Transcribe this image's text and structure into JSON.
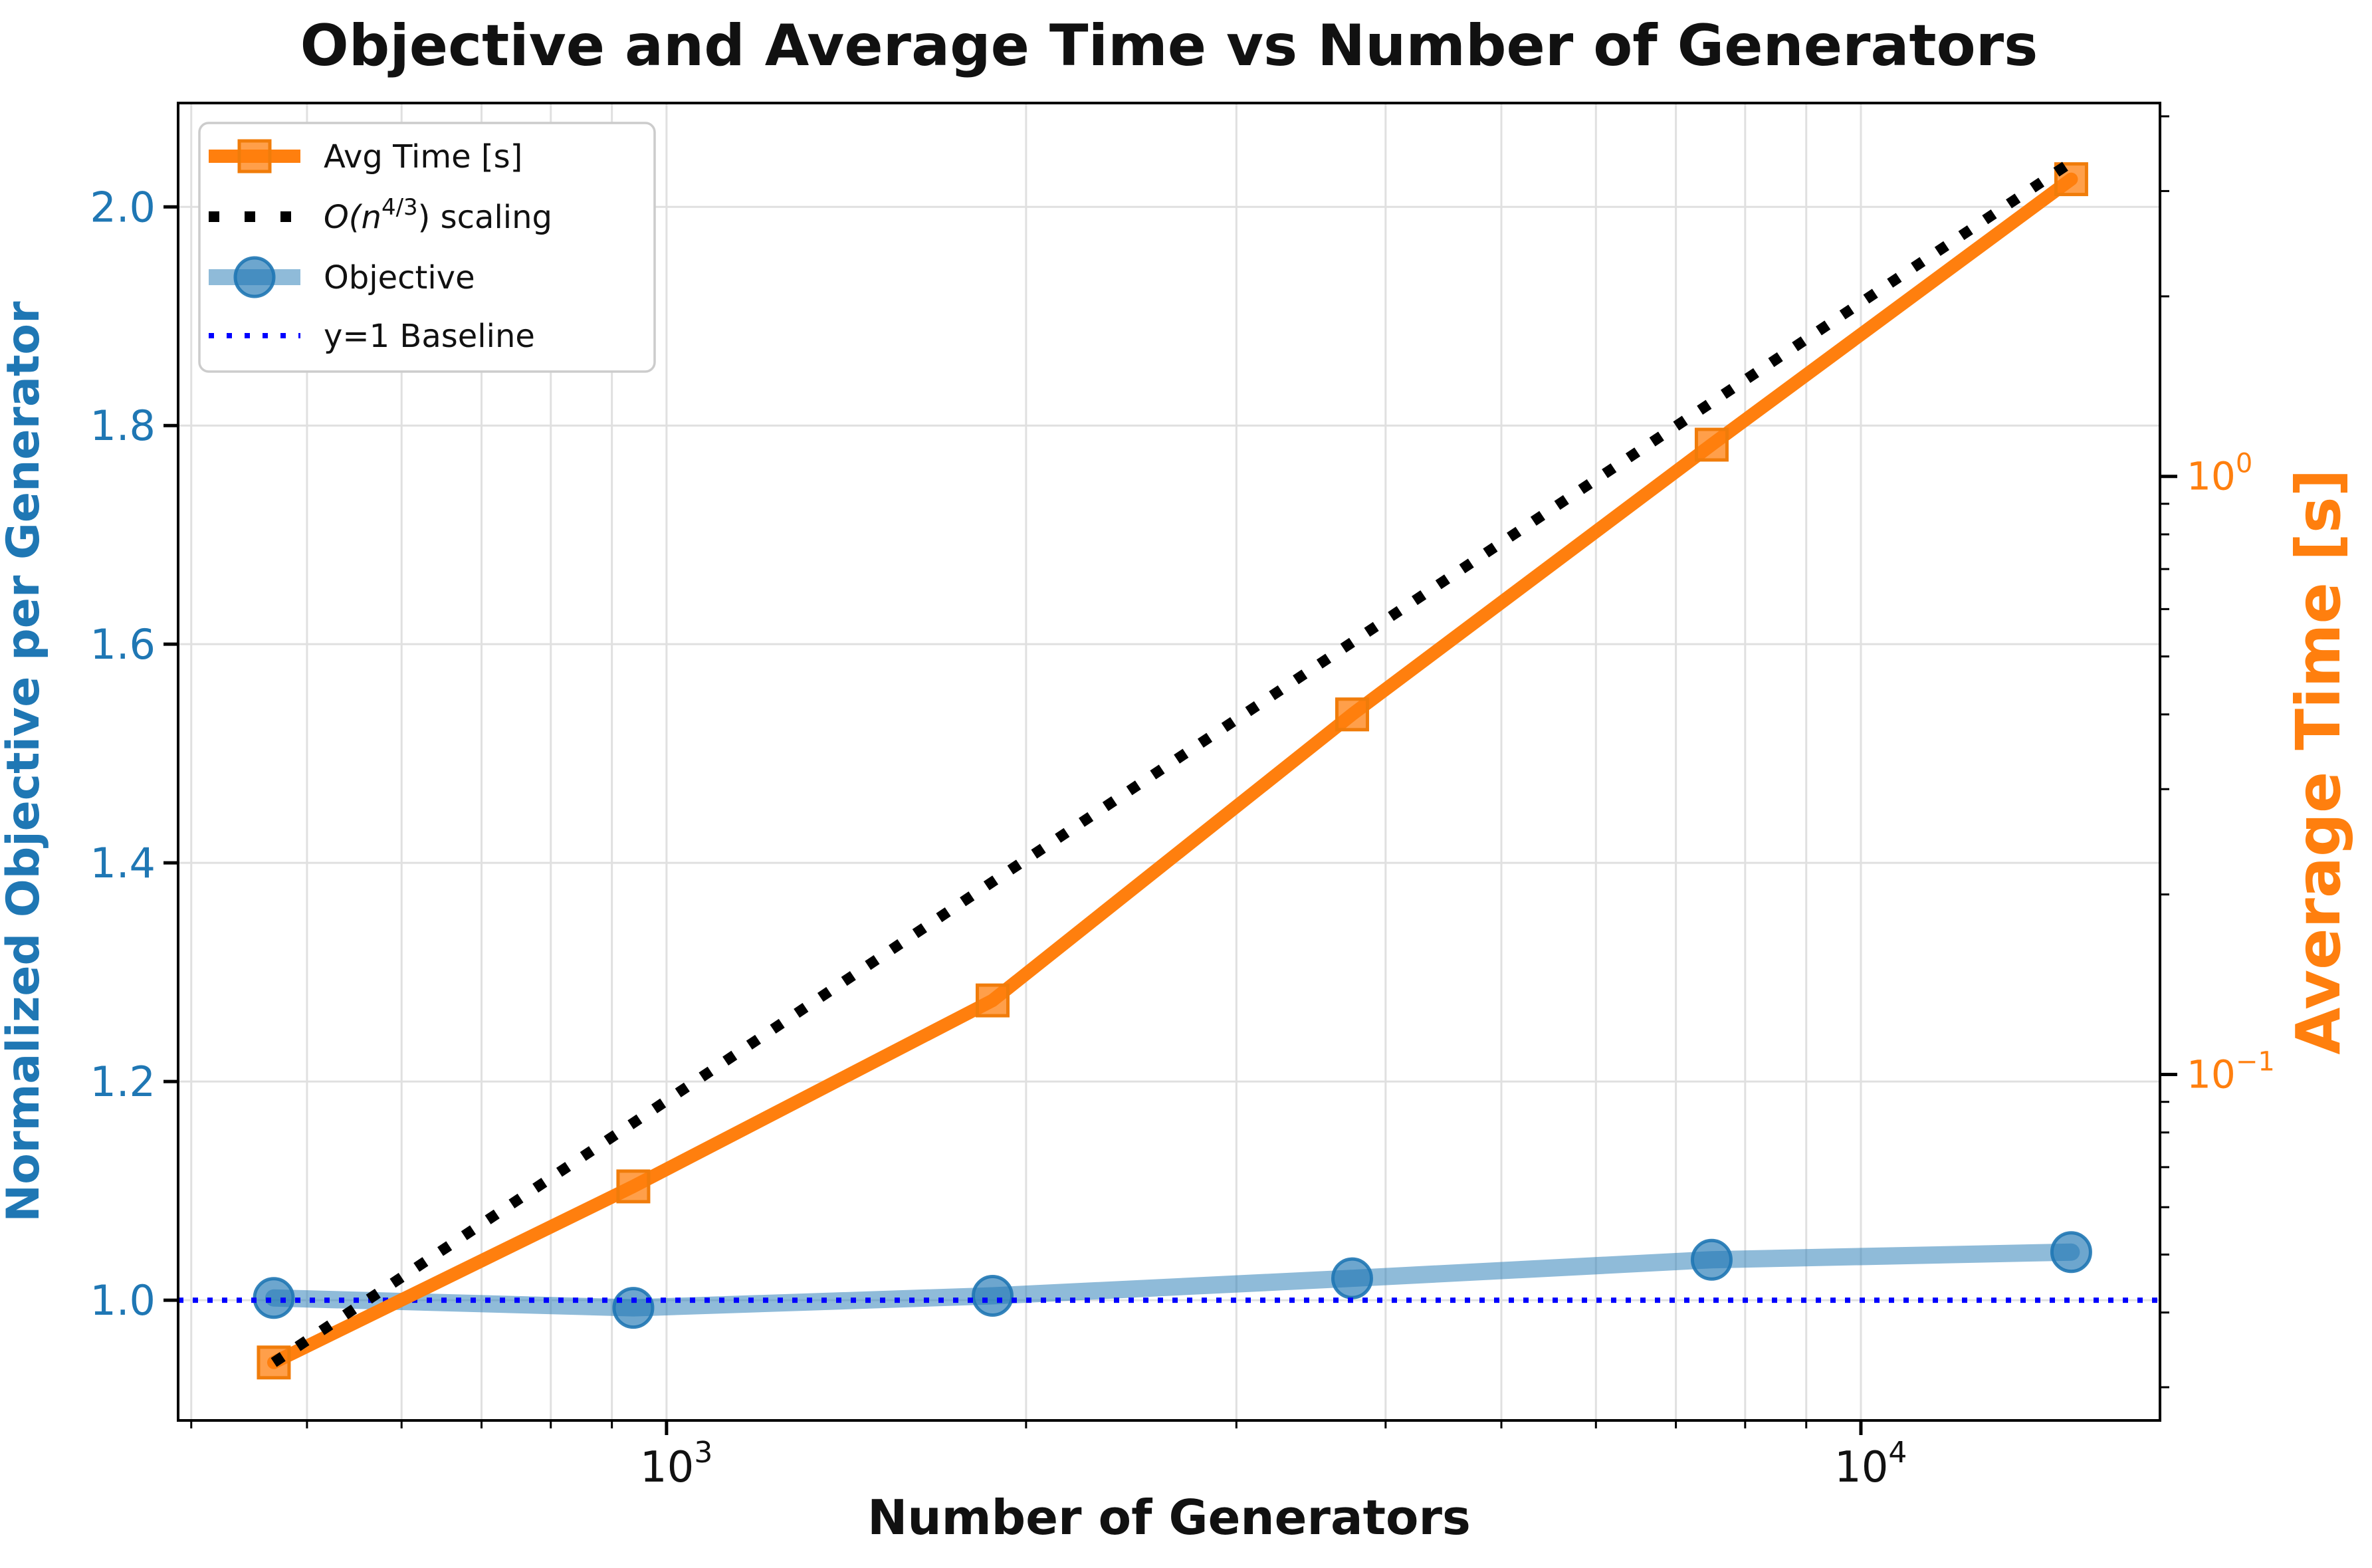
{
  "chart_data": {
    "type": "line",
    "title": "Objective and Average Time vs Number of Generators",
    "xlabel": "Number of Generators",
    "ylabel_left": "Normalized Objective per Generator",
    "ylabel_right": "Average Time [s]",
    "x_scale": "log",
    "left_y_scale": "linear",
    "right_y_scale": "log",
    "grid": true,
    "legend_position": "upper left",
    "x": [
      469,
      938,
      1875,
      3750,
      7500,
      15000
    ],
    "series": [
      {
        "name": "Avg Time [s]",
        "axis": "right",
        "marker": "square",
        "style": "solid",
        "color": "#ff7f0e",
        "values": [
          0.033,
          0.065,
          0.133,
          0.4,
          1.13,
          3.14
        ]
      },
      {
        "name": "O(n^{4/3}) scaling",
        "axis": "right",
        "marker": "none",
        "style": "dotted",
        "color": "#000000",
        "values": [
          0.033,
          0.083,
          0.21,
          0.528,
          1.33,
          3.352
        ]
      },
      {
        "name": "Objective",
        "axis": "left",
        "marker": "circle",
        "style": "solid",
        "color": "#1f77b4",
        "values": [
          1.002,
          0.993,
          1.004,
          1.02,
          1.037,
          1.044
        ]
      },
      {
        "name": "y=1 Baseline",
        "axis": "left",
        "marker": "none",
        "style": "dotted",
        "color": "#0000ff",
        "baseline_value": 1.0
      }
    ],
    "xlim": [
      390,
      17800
    ],
    "ylim_left": [
      0.89,
      2.095
    ],
    "ylim_right": [
      0.0264,
      4.21
    ],
    "xticks_major": [
      {
        "base": "10",
        "exp": "3",
        "value": 1000
      },
      {
        "base": "10",
        "exp": "4",
        "value": 10000
      }
    ],
    "xticks_minor": [
      400,
      500,
      600,
      700,
      800,
      900,
      2000,
      3000,
      4000,
      5000,
      6000,
      7000,
      8000,
      9000
    ],
    "yticks_left": [
      {
        "label": "1.0",
        "value": 1.0
      },
      {
        "label": "1.2",
        "value": 1.2
      },
      {
        "label": "1.4",
        "value": 1.4
      },
      {
        "label": "1.6",
        "value": 1.6
      },
      {
        "label": "1.8",
        "value": 1.8
      },
      {
        "label": "2.0",
        "value": 2.0
      }
    ],
    "yticks_right_major": [
      {
        "base": "10",
        "exp": "0",
        "value": 1
      },
      {
        "base": "10",
        "exp": "−1",
        "value": 0.1
      }
    ],
    "yticks_right_minor": [
      0.03,
      0.04,
      0.05,
      0.06,
      0.07,
      0.08,
      0.09,
      0.2,
      0.3,
      0.4,
      0.5,
      0.6,
      0.7,
      0.8,
      0.9,
      2,
      3,
      4
    ],
    "colors": {
      "left_axis": "#1f77b4",
      "right_axis": "#ff7f0e",
      "baseline": "#0000ff",
      "scaling_line": "#000000",
      "grid": "#e0e0e0",
      "spine": "#000000",
      "legend_border": "#cccccc"
    }
  },
  "legend": {
    "items": [
      {
        "kind": "line-marker",
        "marker": "square",
        "color": "#ff7f0e",
        "label": "Avg Time [s]"
      },
      {
        "kind": "dotted",
        "color": "#000000",
        "lw": 16,
        "label_parts": [
          {
            "text": "O(n",
            "italic": true
          },
          {
            "text": "4/3",
            "sup": true
          },
          {
            "text": ") scaling",
            "italic": false
          }
        ]
      },
      {
        "kind": "line-marker",
        "marker": "circle",
        "color": "#1f77b4",
        "label": "Objective"
      },
      {
        "kind": "dotted",
        "color": "#0000ff",
        "lw": 8,
        "label": "y=1 Baseline"
      }
    ]
  }
}
